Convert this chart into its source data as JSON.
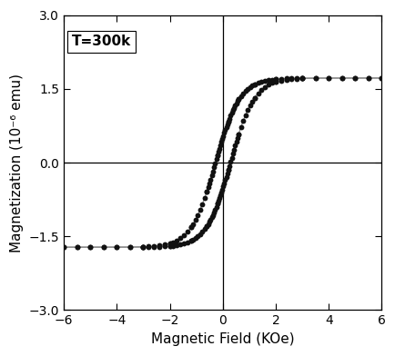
{
  "xlim": [
    -6,
    6
  ],
  "ylim": [
    -3.0,
    3.0
  ],
  "xticks": [
    -6,
    -4,
    -2,
    0,
    2,
    4,
    6
  ],
  "yticks": [
    -3.0,
    -1.5,
    0.0,
    1.5,
    3.0
  ],
  "xlabel": "Magnetic Field (KOe)",
  "ylabel": "Magnetization (10⁻⁶ emu)",
  "annotation": "T=300k",
  "Ms": 1.72,
  "Hc": 0.28,
  "alpha": 1.1,
  "dot_color": "#111111",
  "line_color": "#888888",
  "figsize": [
    4.35,
    3.92
  ],
  "dpi": 100
}
